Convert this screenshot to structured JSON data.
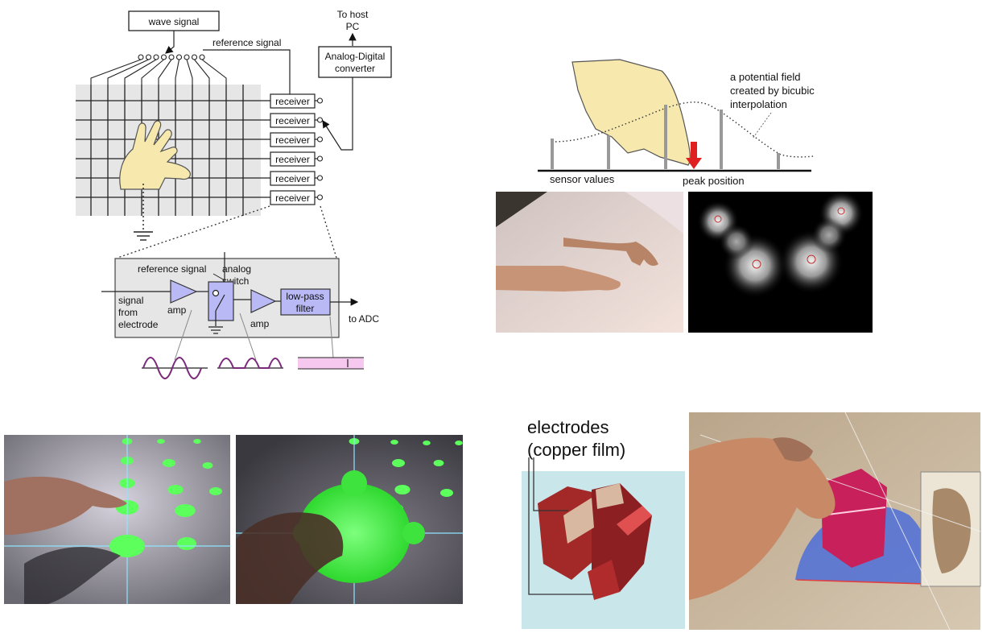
{
  "schematic": {
    "wave_signal": "wave signal",
    "reference_signal": "reference signal",
    "to_host_line1": "To host",
    "to_host_line2": "PC",
    "adc_line1": "Analog-Digital",
    "adc_line2": "converter",
    "receivers": [
      "receiver",
      "receiver",
      "receiver",
      "receiver",
      "receiver",
      "receiver"
    ],
    "circuit": {
      "reference_signal": "reference signal",
      "analog_switch_line1": "analog",
      "analog_switch_line2": "switch",
      "signal_from_line1": "signal",
      "signal_from_line2": "from",
      "signal_from_line3": "electrode",
      "amp1": "amp",
      "amp2": "amp",
      "lpf_line1": "low-pass",
      "lpf_line2": "filter",
      "to_adc": "to ADC"
    }
  },
  "interpolation": {
    "field_line1": "a potential field",
    "field_line2": "created by bicubic",
    "field_line3": "interpolation",
    "sensor_values": "sensor values",
    "peak_position": "peak position"
  },
  "cube_photo": {
    "electrodes_line1": "electrodes",
    "electrodes_line2": "(copper film)"
  },
  "colors": {
    "amp_fill": "#b9b9f5",
    "pink_band": "#f6c8f0",
    "hand_fill": "#f7e9ae",
    "arrow_red": "#e02020",
    "marker_green": "#5cff5c",
    "glow_green": "#33ee33"
  }
}
